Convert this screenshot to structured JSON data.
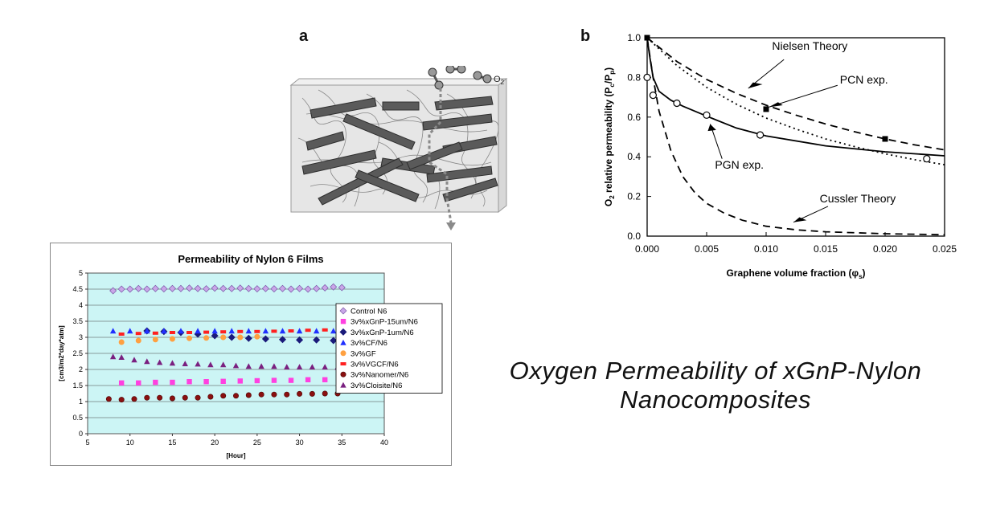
{
  "panel_a_label": "a",
  "panel_b_label": "b",
  "schematic": {
    "o2_label": "O",
    "o2_subscript": "2"
  },
  "slide_title": {
    "line1": "Oxygen Permeability of xGnP-Nylon",
    "line2": "Nanocomposites"
  },
  "chart_data": [
    {
      "type": "line",
      "panel": "b",
      "xlabel": "Graphene volume fraction (φ",
      "xlabel_subscript": "s",
      "xlabel_tail": ")",
      "ylabel_main": "relative permeability (P",
      "ylabel_lead": "O",
      "ylabel_lead_sub": "2",
      "ylabel_sub1": "c",
      "ylabel_mid": "/P",
      "ylabel_sub2": "p",
      "ylabel_tail": ")",
      "xlim": [
        0,
        0.025
      ],
      "ylim": [
        0,
        1.0
      ],
      "x_ticks": [
        "0.000",
        "0.005",
        "0.010",
        "0.015",
        "0.020",
        "0.025"
      ],
      "x_tick_values": [
        0,
        0.005,
        0.01,
        0.015,
        0.02,
        0.025
      ],
      "y_ticks": [
        "0.0",
        "0.2",
        "0.4",
        "0.6",
        "0.8",
        "1.0"
      ],
      "y_tick_values": [
        0,
        0.2,
        0.4,
        0.6,
        0.8,
        1.0
      ],
      "series": [
        {
          "name": "PGN exp.",
          "style": "solid",
          "points": [
            [
              0,
              1.0
            ],
            [
              0.0002,
              0.91
            ],
            [
              0.0005,
              0.8
            ],
            [
              0.001,
              0.73
            ],
            [
              0.002,
              0.685
            ],
            [
              0.003,
              0.655
            ],
            [
              0.005,
              0.605
            ],
            [
              0.0075,
              0.545
            ],
            [
              0.01,
              0.505
            ],
            [
              0.015,
              0.455
            ],
            [
              0.02,
              0.425
            ],
            [
              0.025,
              0.405
            ]
          ]
        },
        {
          "name": "Nielsen Theory",
          "style": "dotted",
          "points": [
            [
              0,
              1.0
            ],
            [
              0.0025,
              0.86
            ],
            [
              0.005,
              0.75
            ],
            [
              0.0075,
              0.665
            ],
            [
              0.01,
              0.595
            ],
            [
              0.0125,
              0.54
            ],
            [
              0.015,
              0.49
            ],
            [
              0.0175,
              0.45
            ],
            [
              0.02,
              0.415
            ],
            [
              0.0225,
              0.385
            ],
            [
              0.025,
              0.36
            ]
          ]
        },
        {
          "name": "PCN exp.",
          "style": "dashed",
          "points": [
            [
              0,
              1.0
            ],
            [
              0.0025,
              0.88
            ],
            [
              0.005,
              0.79
            ],
            [
              0.0075,
              0.72
            ],
            [
              0.01,
              0.66
            ],
            [
              0.0125,
              0.61
            ],
            [
              0.015,
              0.565
            ],
            [
              0.0175,
              0.525
            ],
            [
              0.02,
              0.49
            ],
            [
              0.0225,
              0.46
            ],
            [
              0.025,
              0.435
            ]
          ]
        },
        {
          "name": "Cussler Theory",
          "style": "dashed",
          "points": [
            [
              0,
              1.0
            ],
            [
              0.0005,
              0.8
            ],
            [
              0.001,
              0.63
            ],
            [
              0.002,
              0.43
            ],
            [
              0.003,
              0.3
            ],
            [
              0.004,
              0.22
            ],
            [
              0.005,
              0.165
            ],
            [
              0.0065,
              0.115
            ],
            [
              0.008,
              0.08
            ],
            [
              0.01,
              0.05
            ],
            [
              0.0125,
              0.032
            ],
            [
              0.015,
              0.022
            ],
            [
              0.02,
              0.012
            ],
            [
              0.025,
              0.007
            ]
          ]
        }
      ],
      "markers_open": [
        [
          0,
          0.8
        ],
        [
          0.0005,
          0.71
        ],
        [
          0.0025,
          0.67
        ],
        [
          0.005,
          0.61
        ],
        [
          0.0095,
          0.51
        ],
        [
          0.0235,
          0.39
        ]
      ],
      "markers_filled": [
        [
          0,
          1.0
        ],
        [
          0.01,
          0.64
        ],
        [
          0.02,
          0.49
        ]
      ],
      "annotations": {
        "nielsen": "Nielsen Theory",
        "pcn": "PCN exp.",
        "pgn": "PGN exp.",
        "cussler": "Cussler Theory"
      }
    },
    {
      "type": "scatter",
      "panel": "bottom",
      "title": "Permeability of Nylon 6 Films",
      "xlabel": "[Hour]",
      "ylabel": "[cm3/m2*day*atm]",
      "xlim": [
        5,
        40
      ],
      "ylim": [
        0,
        5
      ],
      "x_ticks": [
        "5",
        "10",
        "15",
        "20",
        "25",
        "30",
        "35",
        "40"
      ],
      "x_tick_values": [
        5,
        10,
        15,
        20,
        25,
        30,
        35,
        40
      ],
      "y_ticks": [
        "0",
        "0.5",
        "1",
        "1.5",
        "2",
        "2.5",
        "3",
        "3.5",
        "4",
        "4.5",
        "5"
      ],
      "y_tick_values": [
        0,
        0.5,
        1,
        1.5,
        2,
        2.5,
        3,
        3.5,
        4,
        4.5,
        5
      ],
      "legend_position": "right",
      "colors": {
        "plot_bg": "#ccf5f5",
        "grid": "#444444"
      },
      "series": [
        {
          "name": "Control N6",
          "marker": "diamond",
          "color": "#c9a6e8",
          "stroke": "#7a58a8",
          "x": [
            8,
            9,
            10,
            11,
            12,
            13,
            14,
            15,
            16,
            17,
            18,
            19,
            20,
            21,
            22,
            23,
            24,
            25,
            26,
            27,
            28,
            29,
            30,
            31,
            32,
            33,
            34,
            35
          ],
          "y": [
            4.45,
            4.5,
            4.5,
            4.52,
            4.5,
            4.52,
            4.51,
            4.52,
            4.52,
            4.53,
            4.52,
            4.51,
            4.53,
            4.52,
            4.52,
            4.53,
            4.52,
            4.51,
            4.52,
            4.51,
            4.52,
            4.5,
            4.52,
            4.5,
            4.52,
            4.54,
            4.57,
            4.55
          ]
        },
        {
          "name": "3v%xGnP-15um/N6",
          "marker": "square",
          "color": "#ff40e0",
          "stroke": "#ff40e0",
          "x": [
            9,
            11,
            13,
            15,
            17,
            19,
            21,
            23,
            25,
            27,
            29,
            31,
            33,
            35
          ],
          "y": [
            1.58,
            1.58,
            1.6,
            1.6,
            1.62,
            1.62,
            1.63,
            1.64,
            1.65,
            1.66,
            1.66,
            1.68,
            1.68,
            1.7
          ]
        },
        {
          "name": "3v%xGnP-1um/N6",
          "marker": "diamond",
          "color": "#1a1a7a",
          "stroke": "#1a1a7a",
          "x": [
            12,
            14,
            16,
            18,
            20,
            22,
            24,
            26,
            28,
            30,
            32,
            34
          ],
          "y": [
            3.2,
            3.18,
            3.15,
            3.1,
            3.05,
            3.0,
            2.97,
            2.95,
            2.93,
            2.92,
            2.92,
            2.9
          ]
        },
        {
          "name": "3v%CF/N6",
          "marker": "triangle",
          "color": "#2030ff",
          "stroke": "#2030ff",
          "x": [
            8,
            10,
            12,
            14,
            16,
            18,
            20,
            22,
            24,
            26,
            28,
            30,
            32,
            34
          ],
          "y": [
            3.2,
            3.2,
            3.2,
            3.2,
            3.2,
            3.2,
            3.2,
            3.2,
            3.2,
            3.2,
            3.2,
            3.2,
            3.2,
            3.2
          ]
        },
        {
          "name": "3v%GF",
          "marker": "circle",
          "color": "#ffa040",
          "stroke": "#ffa040",
          "x": [
            9,
            11,
            13,
            15,
            17,
            19,
            21,
            23,
            25
          ],
          "y": [
            2.85,
            2.9,
            2.93,
            2.95,
            2.97,
            2.98,
            3.0,
            3.0,
            3.02
          ]
        },
        {
          "name": "3v%VGCF/N6",
          "marker": "dash",
          "color": "#ff2020",
          "stroke": "#ff2020",
          "x": [
            9,
            11,
            13,
            15,
            17,
            19,
            21,
            23,
            25,
            27,
            29,
            31,
            33,
            35
          ],
          "y": [
            3.1,
            3.12,
            3.13,
            3.15,
            3.15,
            3.16,
            3.17,
            3.18,
            3.18,
            3.19,
            3.2,
            3.22,
            3.23,
            3.25
          ]
        },
        {
          "name": "3v%Nanomer/N6",
          "marker": "circle",
          "color": "#8a1010",
          "stroke": "#4a0505",
          "x": [
            7.5,
            9,
            10.5,
            12,
            13.5,
            15,
            16.5,
            18,
            19.5,
            21,
            22.5,
            24,
            25.5,
            27,
            28.5,
            30,
            31.5,
            33,
            34.5
          ],
          "y": [
            1.08,
            1.06,
            1.08,
            1.12,
            1.12,
            1.1,
            1.12,
            1.12,
            1.15,
            1.18,
            1.18,
            1.2,
            1.22,
            1.22,
            1.22,
            1.24,
            1.24,
            1.25,
            1.25
          ]
        },
        {
          "name": "3v%Cloisite/N6",
          "marker": "triangle",
          "color": "#7a2080",
          "stroke": "#7a2080",
          "x": [
            8,
            9,
            10.5,
            12,
            13.5,
            15,
            16.5,
            18,
            19.5,
            21,
            22.5,
            24,
            25.5,
            27,
            28.5,
            30,
            31.5,
            33,
            34.5
          ],
          "y": [
            2.4,
            2.38,
            2.3,
            2.25,
            2.22,
            2.2,
            2.18,
            2.17,
            2.15,
            2.15,
            2.12,
            2.1,
            2.1,
            2.1,
            2.08,
            2.08,
            2.08,
            2.08,
            2.07
          ]
        }
      ]
    }
  ]
}
